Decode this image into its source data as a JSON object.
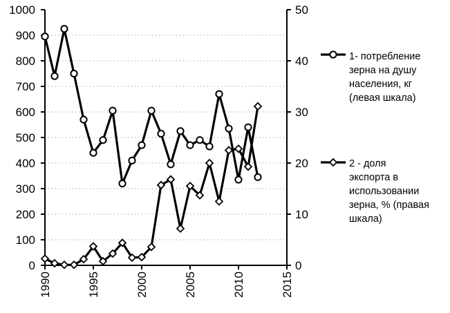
{
  "chart_data": {
    "type": "line",
    "x_range": [
      1990,
      2015
    ],
    "x_ticks": [
      "1990",
      "1995",
      "2000",
      "2005",
      "2010",
      "2015"
    ],
    "y_left": {
      "range": [
        0,
        1000
      ],
      "ticks": [
        "0",
        "100",
        "200",
        "300",
        "400",
        "500",
        "600",
        "700",
        "800",
        "900",
        "1000"
      ]
    },
    "y_right": {
      "range": [
        0,
        50
      ],
      "ticks": [
        "0",
        "10",
        "20",
        "30",
        "40",
        "50"
      ]
    },
    "grid": true,
    "legend_placement": "right",
    "series": [
      {
        "name": "1- потребление зерна на душу населения, кг (левая шкала)",
        "legend_lines": [
          "1- потребление",
          "зерна на душу",
          "населения, кг",
          "(левая шкала)"
        ],
        "axis": "left",
        "marker": "circle",
        "x": [
          1990,
          1991,
          1992,
          1993,
          1994,
          1995,
          1996,
          1997,
          1998,
          1999,
          2000,
          2001,
          2002,
          2003,
          2004,
          2005,
          2006,
          2007,
          2008,
          2009,
          2010,
          2011,
          2012
        ],
        "values": [
          895,
          740,
          925,
          750,
          570,
          440,
          490,
          605,
          320,
          410,
          470,
          605,
          515,
          395,
          525,
          470,
          490,
          465,
          670,
          535,
          335,
          540,
          345
        ]
      },
      {
        "name": "2 - доля экспорта в использовании зерна, % (правая шкала)",
        "legend_lines": [
          "2 - доля",
          "экспорта в",
          "использовании",
          "зерна, % (правая",
          "шкала)"
        ],
        "axis": "right",
        "marker": "diamond",
        "x": [
          1990,
          1991,
          1992,
          1993,
          1994,
          1995,
          1996,
          1997,
          1998,
          1999,
          2000,
          2001,
          2002,
          2003,
          2004,
          2005,
          2006,
          2007,
          2008,
          2009,
          2010,
          2011,
          2012
        ],
        "values": [
          1.3,
          0.4,
          0.1,
          0.1,
          1.2,
          3.7,
          0.8,
          2.3,
          4.4,
          1.5,
          1.6,
          3.6,
          15.7,
          16.8,
          7.2,
          15.5,
          13.7,
          20.0,
          12.5,
          22.5,
          22.8,
          19.3,
          31.1
        ]
      }
    ]
  }
}
